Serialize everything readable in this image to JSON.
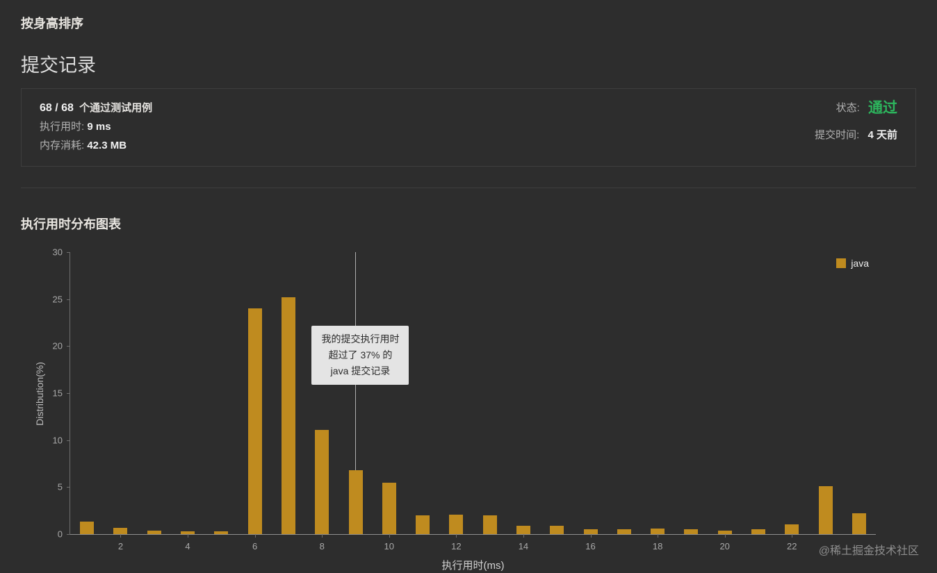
{
  "header": {
    "subtitle": "按身高排序",
    "title": "提交记录"
  },
  "summary": {
    "passed_bold": "68 / 68",
    "passed_rest": "个通过测试用例",
    "runtime_label": "执行用时:",
    "runtime_value": "9 ms",
    "memory_label": "内存消耗:",
    "memory_value": "42.3 MB",
    "status_label": "状态:",
    "status_value": "通过",
    "time_label": "提交时间:",
    "time_value": "4 天前"
  },
  "chart_section_title": "执行用时分布图表",
  "watermark": "@稀土掘金技术社区",
  "colors": {
    "bar": "#bf8b1f",
    "status_green": "#2db55d",
    "background": "#2d2d2d"
  },
  "chart_data": {
    "type": "bar",
    "title": "执行用时分布图表",
    "xlabel": "执行用时(ms)",
    "ylabel": "Distribution(%)",
    "ylim": [
      0,
      30
    ],
    "yticks": [
      0,
      5,
      10,
      15,
      20,
      25,
      30
    ],
    "xticks": [
      2,
      4,
      6,
      8,
      10,
      12,
      14,
      16,
      18,
      20,
      22
    ],
    "x": [
      1,
      2,
      3,
      4,
      5,
      6,
      7,
      8,
      9,
      10,
      11,
      12,
      13,
      14,
      15,
      16,
      17,
      18,
      19,
      20,
      21,
      22,
      23,
      24
    ],
    "values": [
      1.3,
      0.7,
      0.4,
      0.3,
      0.3,
      24,
      25.2,
      11.1,
      6.8,
      5.5,
      2,
      2.1,
      2,
      0.9,
      0.9,
      0.5,
      0.5,
      0.6,
      0.5,
      0.4,
      0.5,
      1,
      5.1,
      2.2
    ],
    "series": [
      {
        "name": "java",
        "color": "#bf8b1f"
      }
    ],
    "legend_position": "top-right",
    "grid": false,
    "marker": {
      "x": 9,
      "tooltip": [
        "我的提交执行用时",
        "超过了 37% 的",
        "java 提交记录"
      ]
    }
  }
}
